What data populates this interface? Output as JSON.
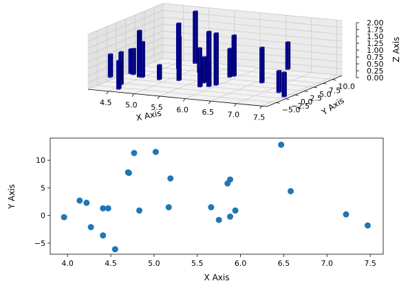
{
  "chart_data": [
    {
      "type": "bar3d",
      "xlabel": "X Axis",
      "ylabel": "Y Axis",
      "zlabel": "Z Axis",
      "xlim": [
        4.1,
        7.6
      ],
      "ylim": [
        -7.5,
        12.5
      ],
      "zlim": [
        0,
        2
      ],
      "xticks": [
        4.5,
        5.0,
        5.5,
        6.0,
        6.5,
        7.0,
        7.5
      ],
      "xtick_labels": [
        "4.5",
        "5.0",
        "5.5",
        "6.0",
        "6.5",
        "7.0",
        "7.5"
      ],
      "yticks": [
        -5.0,
        -2.5,
        0.0,
        2.5,
        5.0,
        7.5,
        10.0
      ],
      "ytick_labels": [
        "−5.0",
        "−2.5",
        "0.0",
        "2.5",
        "5.0",
        "7.5",
        "10.0"
      ],
      "zticks": [
        0,
        0.25,
        0.5,
        0.75,
        1.0,
        1.25,
        1.5,
        1.75,
        2.0
      ],
      "ztick_labels": [
        "0.00",
        "0.25",
        "0.50",
        "0.75",
        "1.00",
        "1.25",
        "1.50",
        "1.75",
        "2.00"
      ],
      "bar_color": "#00008b",
      "bars": [
        {
          "x": 3.96,
          "y": -0.3,
          "z": 0.85
        },
        {
          "x": 4.14,
          "y": 2.7,
          "z": 0.9
        },
        {
          "x": 4.22,
          "y": 2.3,
          "z": 0.95
        },
        {
          "x": 4.27,
          "y": -2.1,
          "z": 0.75
        },
        {
          "x": 4.41,
          "y": 1.3,
          "z": 1.7
        },
        {
          "x": 4.41,
          "y": -3.6,
          "z": 1.2
        },
        {
          "x": 4.47,
          "y": 1.3,
          "z": 1.3
        },
        {
          "x": 4.55,
          "y": -6.1,
          "z": 1.05
        },
        {
          "x": 4.7,
          "y": 7.8,
          "z": 1.65
        },
        {
          "x": 4.77,
          "y": 11.3,
          "z": 1.9
        },
        {
          "x": 4.83,
          "y": 0.9,
          "z": 0.55
        },
        {
          "x": 5.02,
          "y": 11.5,
          "z": 1.2
        },
        {
          "x": 5.17,
          "y": 1.5,
          "z": 1.6
        },
        {
          "x": 5.19,
          "y": 6.7,
          "z": 0.9
        },
        {
          "x": 5.66,
          "y": 1.5,
          "z": 0.95
        },
        {
          "x": 5.75,
          "y": -0.8,
          "z": 0.7
        },
        {
          "x": 5.85,
          "y": 5.8,
          "z": 1.05
        },
        {
          "x": 5.88,
          "y": 6.5,
          "z": 1.5
        },
        {
          "x": 5.88,
          "y": -0.2,
          "z": 0.95
        },
        {
          "x": 5.94,
          "y": 0.9,
          "z": 1.9
        },
        {
          "x": 6.47,
          "y": 12.8,
          "z": 1.0
        },
        {
          "x": 6.58,
          "y": 4.4,
          "z": 1.3
        },
        {
          "x": 7.22,
          "y": 0.2,
          "z": 0.8
        },
        {
          "x": 7.47,
          "y": -1.8,
          "z": 0.9
        }
      ]
    },
    {
      "type": "scatter",
      "xlabel": "X Axis",
      "ylabel": "Y Axis",
      "xlim": [
        3.8,
        7.65
      ],
      "ylim": [
        -7.0,
        14.0
      ],
      "xticks": [
        4.0,
        4.5,
        5.0,
        5.5,
        6.0,
        6.5,
        7.0,
        7.5
      ],
      "xtick_labels": [
        "4.0",
        "4.5",
        "5.0",
        "5.5",
        "6.0",
        "6.5",
        "7.0",
        "7.5"
      ],
      "yticks": [
        -5,
        0,
        5,
        10
      ],
      "ytick_labels": [
        "−5",
        "0",
        "5",
        "10"
      ],
      "color": "#1f77b4",
      "points": [
        {
          "x": 3.96,
          "y": -0.3
        },
        {
          "x": 4.14,
          "y": 2.7
        },
        {
          "x": 4.22,
          "y": 2.3
        },
        {
          "x": 4.27,
          "y": -2.1
        },
        {
          "x": 4.41,
          "y": 1.3
        },
        {
          "x": 4.41,
          "y": -3.6
        },
        {
          "x": 4.47,
          "y": 1.3
        },
        {
          "x": 4.55,
          "y": -6.1
        },
        {
          "x": 4.7,
          "y": 7.8
        },
        {
          "x": 4.71,
          "y": 7.7
        },
        {
          "x": 4.77,
          "y": 11.3
        },
        {
          "x": 4.83,
          "y": 0.9
        },
        {
          "x": 5.02,
          "y": 11.5
        },
        {
          "x": 5.17,
          "y": 1.5
        },
        {
          "x": 5.19,
          "y": 6.7
        },
        {
          "x": 5.66,
          "y": 1.5
        },
        {
          "x": 5.75,
          "y": -0.8
        },
        {
          "x": 5.85,
          "y": 5.8
        },
        {
          "x": 5.88,
          "y": 6.5
        },
        {
          "x": 5.88,
          "y": -0.2
        },
        {
          "x": 5.94,
          "y": 0.9
        },
        {
          "x": 6.47,
          "y": 12.8
        },
        {
          "x": 6.58,
          "y": 4.4
        },
        {
          "x": 7.22,
          "y": 0.2
        },
        {
          "x": 7.47,
          "y": -1.8
        }
      ]
    }
  ]
}
